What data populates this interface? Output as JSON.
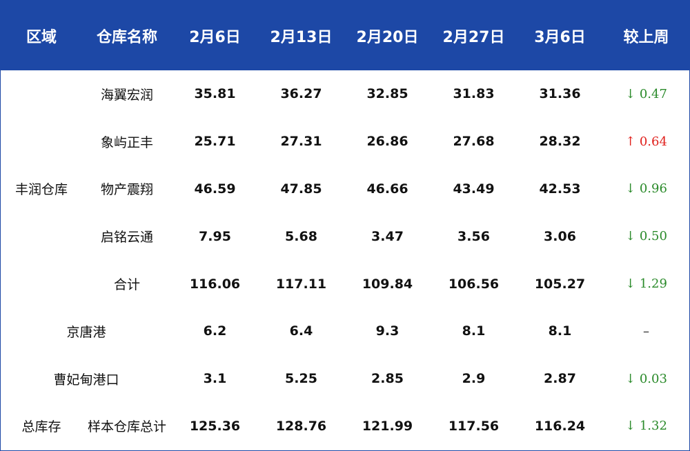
{
  "table": {
    "header": [
      "区域",
      "仓库名称",
      "2月6日",
      "2月13日",
      "2月20日",
      "2月27日",
      "3月6日",
      "较上周"
    ],
    "header_color": "#1d48a6",
    "sections": [
      {
        "region": "丰润仓库",
        "rows": [
          {
            "name": "海翼宏润",
            "values": [
              35.81,
              36.27,
              32.85,
              31.83,
              31.36
            ],
            "change": {
              "text": "↓ 0.47",
              "color": "#2a8a2a"
            }
          },
          {
            "name": "象屿正丰",
            "values": [
              25.71,
              27.31,
              26.86,
              27.68,
              28.32
            ],
            "change": {
              "text": "↑ 0.64",
              "color": "#e0201c"
            }
          },
          {
            "name": "物产震翔",
            "values": [
              46.59,
              47.85,
              46.66,
              43.49,
              42.53
            ],
            "change": {
              "text": "↓ 0.96",
              "color": "#2a8a2a"
            }
          },
          {
            "name": "启铭云通",
            "values": [
              7.95,
              5.68,
              3.47,
              3.56,
              3.06
            ],
            "change": {
              "text": "↓ 0.50",
              "color": "#2a8a2a"
            }
          },
          {
            "name": "合计",
            "values": [
              116.06,
              117.11,
              109.84,
              106.56,
              105.27
            ],
            "change": {
              "text": "↓ 1.29",
              "color": "#2a8a2a"
            }
          }
        ]
      },
      {
        "region": "京唐港",
        "rows": [
          {
            "values": [
              6.2,
              6.4,
              9.3,
              8.1,
              8.1
            ],
            "change": {
              "text": "–",
              "color": "#222222"
            }
          }
        ]
      },
      {
        "region": "曹妃甸港口",
        "rows": [
          {
            "values": [
              3.1,
              5.25,
              2.85,
              2.9,
              2.87
            ],
            "change": {
              "text": "↓ 0.03",
              "color": "#2a8a2a"
            }
          }
        ]
      },
      {
        "region": "总库存",
        "rows": [
          {
            "name": "样本仓库总计",
            "values": [
              125.36,
              128.76,
              121.99,
              117.56,
              116.24
            ],
            "change": {
              "text": "↓ 1.32",
              "color": "#2a8a2a"
            }
          }
        ]
      }
    ]
  }
}
